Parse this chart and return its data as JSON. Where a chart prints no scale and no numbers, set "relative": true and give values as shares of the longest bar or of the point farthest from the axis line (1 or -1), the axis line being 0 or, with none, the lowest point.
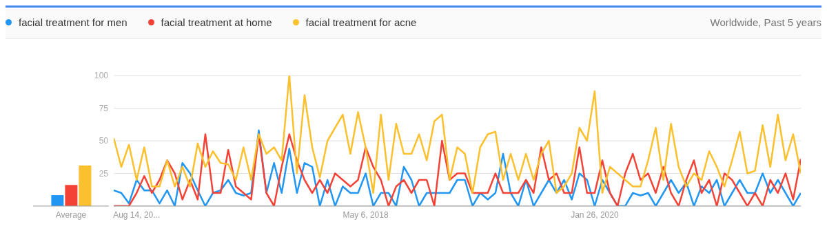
{
  "chart_data": [
    {
      "type": "bar",
      "relative": true,
      "categories": [
        "Average"
      ],
      "series": [
        {
          "color": "#2196f3",
          "values": [
            0.27
          ]
        },
        {
          "color": "#f44336",
          "values": [
            0.52
          ]
        },
        {
          "color": "#fbc02d",
          "values": [
            1
          ]
        }
      ]
    },
    {
      "type": "line",
      "subtitle": "Worldwide, Past 5 years",
      "legend": "top left",
      "grid": "y",
      "ylim": [
        0,
        100
      ],
      "yticks": [
        {
          "value": 0,
          "label": null
        },
        25,
        50,
        75,
        100
      ],
      "xlim": [
        "2016-06-12",
        "2021-08-15"
      ],
      "xticks": [
        {
          "value": "2016-08-14",
          "label": "Aug 14, 20..."
        },
        {
          "value": "2018-05-06",
          "label": "May 6, 2018"
        },
        {
          "value": "2020-01-26",
          "label": "Jan 26, 2020"
        }
      ],
      "x": [
        "2016-06-12",
        "2016-07-03",
        "2016-07-24",
        "2016-08-14",
        "2016-09-04",
        "2016-09-25",
        "2016-10-16",
        "2016-11-06",
        "2016-11-27",
        "2016-12-18",
        "2017-01-08",
        "2017-01-29",
        "2017-02-19",
        "2017-03-12",
        "2017-04-02",
        "2017-04-23",
        "2017-05-14",
        "2017-06-04",
        "2017-06-25",
        "2017-07-16",
        "2017-08-06",
        "2017-08-27",
        "2017-09-17",
        "2017-10-08",
        "2017-10-29",
        "2017-11-19",
        "2017-12-10",
        "2017-12-31",
        "2018-01-21",
        "2018-02-11",
        "2018-03-04",
        "2018-03-25",
        "2018-04-15",
        "2018-05-06",
        "2018-05-27",
        "2018-06-17",
        "2018-07-08",
        "2018-07-29",
        "2018-08-19",
        "2018-09-09",
        "2018-09-30",
        "2018-10-21",
        "2018-11-11",
        "2018-12-02",
        "2018-12-23",
        "2019-01-13",
        "2019-02-03",
        "2019-02-24",
        "2019-03-17",
        "2019-04-07",
        "2019-04-28",
        "2019-05-19",
        "2019-06-09",
        "2019-06-30",
        "2019-07-21",
        "2019-08-11",
        "2019-09-01",
        "2019-09-22",
        "2019-10-13",
        "2019-11-03",
        "2019-11-24",
        "2019-12-15",
        "2020-01-05",
        "2020-01-26",
        "2020-02-16",
        "2020-03-08",
        "2020-03-29",
        "2020-04-19",
        "2020-05-10",
        "2020-05-31",
        "2020-06-21",
        "2020-07-12",
        "2020-08-02",
        "2020-08-23",
        "2020-09-13",
        "2020-10-04",
        "2020-10-25",
        "2020-11-15",
        "2020-12-06",
        "2020-12-27",
        "2021-01-17",
        "2021-02-07",
        "2021-02-28",
        "2021-03-21",
        "2021-04-11",
        "2021-05-02",
        "2021-05-23",
        "2021-06-13",
        "2021-07-04",
        "2021-07-25",
        "2021-08-15"
      ],
      "series": [
        {
          "name": "facial treatment for men",
          "color": "#2196f3",
          "values": [
            12,
            10,
            2,
            20,
            12,
            12,
            2,
            12,
            0,
            33,
            25,
            12,
            0,
            10,
            12,
            20,
            10,
            8,
            10,
            58,
            10,
            33,
            10,
            44,
            10,
            33,
            30,
            0,
            20,
            0,
            15,
            10,
            10,
            25,
            0,
            10,
            10,
            0,
            30,
            20,
            0,
            10,
            10,
            10,
            10,
            20,
            20,
            0,
            10,
            5,
            10,
            40,
            10,
            0,
            20,
            0,
            10,
            20,
            10,
            20,
            5,
            25,
            20,
            0,
            20,
            10,
            0,
            0,
            10,
            8,
            10,
            0,
            10,
            20,
            10,
            18,
            0,
            15,
            10,
            20,
            0,
            10,
            20,
            10,
            10,
            25,
            10,
            20,
            10,
            0,
            10
          ]
        },
        {
          "name": "facial treatment at home",
          "color": "#f44336",
          "values": [
            0,
            0,
            0,
            10,
            23,
            10,
            20,
            35,
            25,
            5,
            20,
            5,
            55,
            10,
            10,
            43,
            15,
            10,
            5,
            55,
            10,
            0,
            30,
            55,
            35,
            20,
            10,
            20,
            10,
            25,
            20,
            15,
            20,
            45,
            30,
            20,
            0,
            15,
            20,
            10,
            20,
            20,
            0,
            50,
            20,
            25,
            25,
            10,
            10,
            10,
            25,
            10,
            10,
            10,
            20,
            10,
            45,
            20,
            25,
            10,
            10,
            45,
            10,
            10,
            35,
            10,
            0,
            25,
            40,
            20,
            25,
            10,
            30,
            10,
            0,
            20,
            35,
            10,
            20,
            0,
            25,
            20,
            10,
            0,
            10,
            0,
            20,
            10,
            25,
            5,
            36
          ]
        },
        {
          "name": "facial treatment for acne",
          "color": "#fbc02d",
          "values": [
            52,
            30,
            47,
            20,
            45,
            15,
            15,
            35,
            15,
            30,
            15,
            48,
            30,
            42,
            33,
            32,
            20,
            45,
            20,
            55,
            40,
            45,
            35,
            100,
            25,
            85,
            45,
            22,
            50,
            60,
            70,
            40,
            72,
            45,
            10,
            70,
            20,
            63,
            40,
            40,
            55,
            35,
            65,
            70,
            20,
            45,
            40,
            10,
            45,
            55,
            57,
            20,
            40,
            20,
            40,
            20,
            40,
            50,
            10,
            15,
            25,
            60,
            50,
            88,
            10,
            30,
            25,
            20,
            15,
            15,
            35,
            60,
            20,
            63,
            30,
            15,
            25,
            20,
            42,
            30,
            15,
            35,
            57,
            25,
            27,
            62,
            30,
            70,
            35,
            55,
            25
          ]
        }
      ]
    }
  ]
}
